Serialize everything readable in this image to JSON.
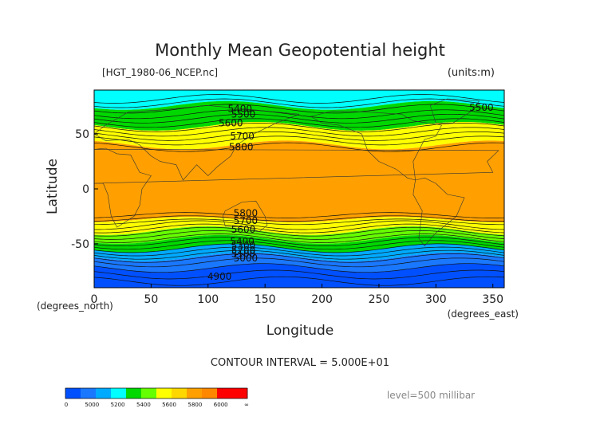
{
  "chart_data": {
    "type": "heatmap",
    "title": "Monthly Mean Geopotential height",
    "file_label": "[HGT_1980-06_NCEP.nc]",
    "units_label": "(units:m)",
    "xlabel": "Longitude",
    "ylabel": "Latitude",
    "x_unit_label": "(degrees_east)",
    "y_unit_label": "(degrees_north)",
    "xlim": [
      0,
      360
    ],
    "ylim": [
      -90,
      90
    ],
    "x_ticks": [
      0,
      50,
      100,
      150,
      200,
      250,
      300,
      350
    ],
    "y_ticks": [
      50,
      0,
      -50
    ],
    "contour_interval_text": "CONTOUR INTERVAL = 5.000E+01",
    "level_text": "level=500 millibar",
    "contour_labels": [
      {
        "text": "5400",
        "x": 128,
        "y": 73
      },
      {
        "text": "5500",
        "x": 131,
        "y": 68
      },
      {
        "text": "5600",
        "x": 120,
        "y": 60
      },
      {
        "text": "5700",
        "x": 130,
        "y": 48
      },
      {
        "text": "5800",
        "x": 129,
        "y": 38
      },
      {
        "text": "5500",
        "x": 340,
        "y": 74
      },
      {
        "text": "5800",
        "x": 133,
        "y": -22
      },
      {
        "text": "5700",
        "x": 133,
        "y": -29
      },
      {
        "text": "5600",
        "x": 131,
        "y": -37
      },
      {
        "text": "5400",
        "x": 130,
        "y": -48
      },
      {
        "text": "5300",
        "x": 131,
        "y": -52
      },
      {
        "text": "5200",
        "x": 131,
        "y": -56
      },
      {
        "text": "5100",
        "x": 131,
        "y": -59
      },
      {
        "text": "5000",
        "x": 133,
        "y": -63
      },
      {
        "text": "4900",
        "x": 110,
        "y": -80
      }
    ],
    "colorbar": {
      "ticks": [
        "0",
        "5000",
        "5200",
        "5400",
        "5600",
        "5800",
        "6000",
        "∞"
      ],
      "colors": [
        "#0050ff",
        "#1a78ff",
        "#00aaff",
        "#00ffff",
        "#00d800",
        "#66ff00",
        "#ffff00",
        "#ffd700",
        "#ffa000",
        "#ff8800",
        "#ff0000",
        "#ff0000"
      ]
    },
    "bands": [
      {
        "lat_top": 90,
        "lat_bottom": 76,
        "value": 5350,
        "color": "#00ffff"
      },
      {
        "lat_top": 76,
        "lat_bottom": 57,
        "value": 5500,
        "color": "#00d800"
      },
      {
        "lat_top": 57,
        "lat_bottom": 40,
        "value": 5725,
        "color": "#ffff00"
      },
      {
        "lat_top": 40,
        "lat_bottom": -28,
        "value": 5850,
        "color": "#ffa000"
      },
      {
        "lat_top": -28,
        "lat_bottom": -38,
        "value": 5725,
        "color": "#ffff00"
      },
      {
        "lat_top": -38,
        "lat_bottom": -46,
        "value": 5625,
        "color": "#66ff00"
      },
      {
        "lat_top": -46,
        "lat_bottom": -54,
        "value": 5500,
        "color": "#00d800"
      },
      {
        "lat_top": -54,
        "lat_bottom": -62,
        "value": 5300,
        "color": "#00aaff"
      },
      {
        "lat_top": -62,
        "lat_bottom": -72,
        "value": 5100,
        "color": "#1a78ff"
      },
      {
        "lat_top": -72,
        "lat_bottom": -90,
        "value": 4900,
        "color": "#0050ff"
      }
    ],
    "grid": false
  }
}
